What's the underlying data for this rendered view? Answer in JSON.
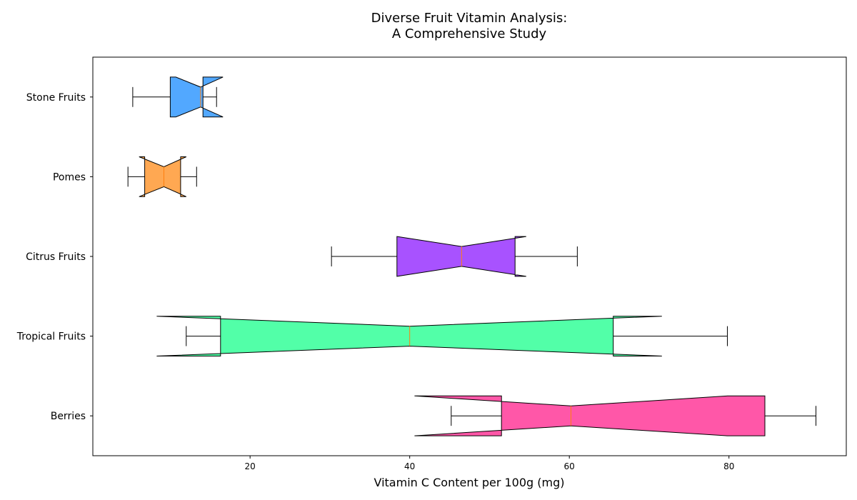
{
  "chart_data": {
    "type": "boxplot",
    "orientation": "horizontal",
    "notched": true,
    "title_line1": "Diverse Fruit Vitamin Analysis:",
    "title_line2": "A Comprehensive Study",
    "xlabel": "Vitamin C Content per 100g (mg)",
    "ylabel": "",
    "xlim": [
      0.3,
      94.7
    ],
    "xticks": [
      20,
      40,
      60,
      80
    ],
    "grid": false,
    "median_color": "#ff7f0e",
    "categories": [
      "Berries",
      "Tropical Fruits",
      "Citrus Fruits",
      "Pomes",
      "Stone Fruits"
    ],
    "series": [
      {
        "name": "Berries",
        "color": "#ff57a8",
        "whisker_low": 45.2,
        "q1": 51.5,
        "median": 60.2,
        "q3": 84.5,
        "whisker_high": 90.9,
        "notch_low": 40.6,
        "notch_high": 79.8
      },
      {
        "name": "Tropical Fruits",
        "color": "#52ffa8",
        "whisker_low": 12.0,
        "q1": 16.3,
        "median": 40.0,
        "q3": 65.5,
        "whisker_high": 79.8,
        "notch_low": 8.3,
        "notch_high": 71.6
      },
      {
        "name": "Citrus Fruits",
        "color": "#a852ff",
        "whisker_low": 30.2,
        "q1": 38.4,
        "median": 46.5,
        "q3": 53.2,
        "whisker_high": 61.0,
        "notch_low": 38.4,
        "notch_high": 54.6
      },
      {
        "name": "Pomes",
        "color": "#ffa852",
        "whisker_low": 4.7,
        "q1": 6.8,
        "median": 9.2,
        "q3": 11.3,
        "whisker_high": 13.3,
        "notch_low": 6.1,
        "notch_high": 12.0
      },
      {
        "name": "Stone Fruits",
        "color": "#52a8ff",
        "whisker_low": 5.3,
        "q1": 10.0,
        "median": 13.8,
        "q3": 14.1,
        "whisker_high": 15.8,
        "notch_low": 10.7,
        "notch_high": 16.6
      }
    ]
  }
}
